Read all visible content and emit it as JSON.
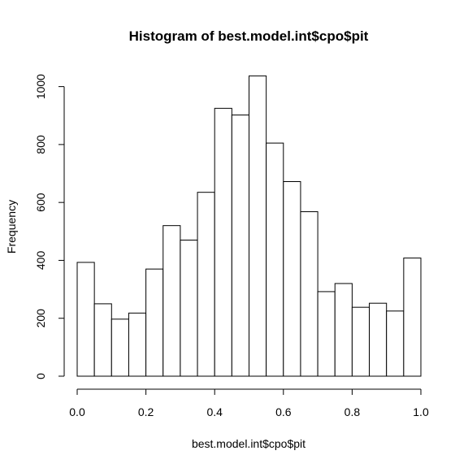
{
  "chart_data": {
    "type": "bar",
    "title": "Histogram of best.model.int$cpo$pit",
    "xlabel": "best.model.int$cpo$pit",
    "ylabel": "Frequency",
    "bin_edges": [
      0.0,
      0.05,
      0.1,
      0.15,
      0.2,
      0.25,
      0.3,
      0.35,
      0.4,
      0.45,
      0.5,
      0.55,
      0.6,
      0.65,
      0.7,
      0.75,
      0.8,
      0.85,
      0.9,
      0.95,
      1.0
    ],
    "values": [
      393,
      250,
      197,
      218,
      370,
      520,
      470,
      635,
      925,
      902,
      1037,
      805,
      672,
      568,
      292,
      320,
      238,
      252,
      225,
      408
    ],
    "xlim": [
      0.0,
      1.0
    ],
    "ylim": [
      0,
      1037
    ],
    "x_ticks": [
      0.0,
      0.2,
      0.4,
      0.6,
      0.8,
      1.0
    ],
    "x_tick_labels": [
      "0.0",
      "0.2",
      "0.4",
      "0.6",
      "0.8",
      "1.0"
    ],
    "y_ticks": [
      0,
      200,
      400,
      600,
      800,
      1000
    ],
    "y_tick_labels": [
      "0",
      "200",
      "400",
      "600",
      "800",
      "1000"
    ],
    "grid": false,
    "colors": {
      "bar_fill": "#ffffff",
      "bar_stroke": "#000000"
    }
  }
}
